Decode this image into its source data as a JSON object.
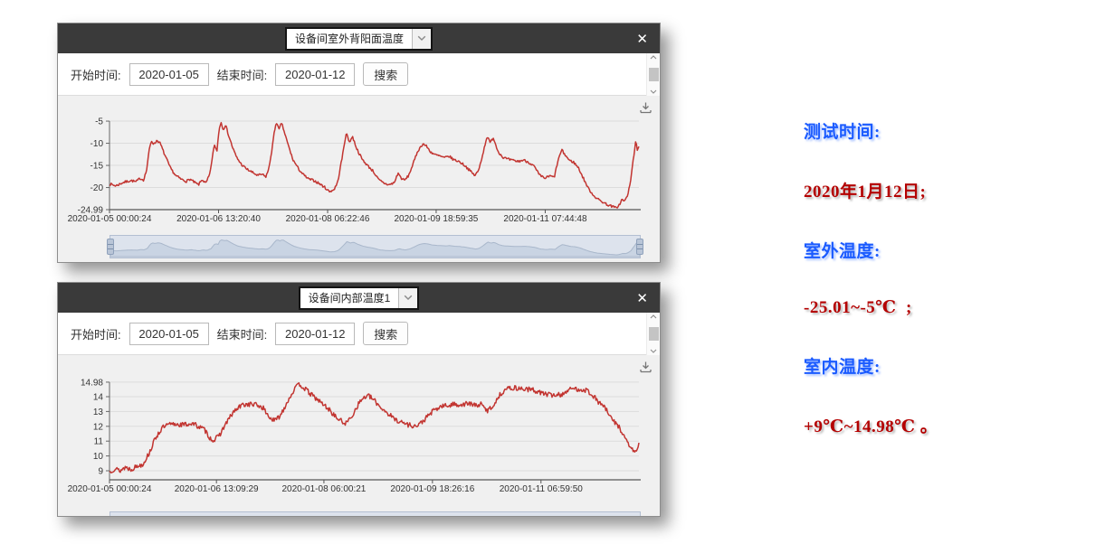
{
  "icons": {
    "close": "✕",
    "dropdown_chevron": "chevron-down",
    "scroll_up": "chevron-up",
    "scroll_down": "chevron-down",
    "download": "download-arrow-tray"
  },
  "colors": {
    "line_red": "#c23531",
    "titlebar": "#3a3a3a",
    "chart_bg": "#f0f0f0",
    "note_blue": "#1b5bff",
    "note_red": "#b40000",
    "brush_fill": "#c6d1e1"
  },
  "windows": [
    {
      "title": "设备间室外背阳面温度",
      "filter": {
        "start_label": "开始时间:",
        "start_value": "2020-01-05",
        "end_label": "结束时间:",
        "end_value": "2020-01-12",
        "search_label": "搜索"
      }
    },
    {
      "title": "设备间内部温度1",
      "filter": {
        "start_label": "开始时间:",
        "start_value": "2020-01-05",
        "end_label": "结束时间:",
        "end_value": "2020-01-12",
        "search_label": "搜索"
      }
    }
  ],
  "notes": [
    {
      "text": "测试时间:",
      "color": "blue"
    },
    {
      "text": "2020年1月12日;",
      "color": "red"
    },
    {
      "text": "室外温度:",
      "color": "blue"
    },
    {
      "text": "-25.01~-5℃  ;",
      "color": "red"
    },
    {
      "text": "室内温度:",
      "color": "blue"
    },
    {
      "text": "+9℃~14.98℃ 。",
      "color": "red"
    }
  ],
  "chart_data": [
    {
      "type": "line",
      "title": "设备间室外背阳面温度",
      "xlabel": "",
      "ylabel": "",
      "ylim": [
        -24.99,
        -5
      ],
      "grid": true,
      "legend": "none",
      "x_ticks": [
        "2020-01-05 00:00:24",
        "2020-01-06 13:20:40",
        "2020-01-08 06:22:46",
        "2020-01-09 18:59:35",
        "2020-01-11 07:44:48"
      ],
      "x_tick_pos": [
        0,
        0.206,
        0.412,
        0.617,
        0.823
      ],
      "y_ticks": [
        "-5",
        "-10",
        "-15",
        "-20",
        "-24.99"
      ],
      "series": [
        {
          "name": "设备间室外背阳面温度",
          "color": "#c23531",
          "noise": 0.28,
          "points": [
            [
              0.0,
              -19.2
            ],
            [
              0.012,
              -19.6
            ],
            [
              0.025,
              -18.9
            ],
            [
              0.04,
              -18.4
            ],
            [
              0.05,
              -18.7
            ],
            [
              0.058,
              -17.9
            ],
            [
              0.064,
              -18.3
            ],
            [
              0.07,
              -16.2
            ],
            [
              0.075,
              -11.5
            ],
            [
              0.079,
              -9.4
            ],
            [
              0.084,
              -10.2
            ],
            [
              0.09,
              -9.3
            ],
            [
              0.096,
              -10.1
            ],
            [
              0.105,
              -12.8
            ],
            [
              0.115,
              -15.6
            ],
            [
              0.125,
              -17.3
            ],
            [
              0.135,
              -18.1
            ],
            [
              0.145,
              -18.6
            ],
            [
              0.152,
              -18.1
            ],
            [
              0.16,
              -18.8
            ],
            [
              0.168,
              -19.4
            ],
            [
              0.175,
              -18.2
            ],
            [
              0.182,
              -19.1
            ],
            [
              0.19,
              -16.8
            ],
            [
              0.196,
              -11.6
            ],
            [
              0.199,
              -10.4
            ],
            [
              0.203,
              -11.9
            ],
            [
              0.207,
              -6.6
            ],
            [
              0.211,
              -5.3
            ],
            [
              0.215,
              -6.9
            ],
            [
              0.219,
              -5.8
            ],
            [
              0.225,
              -8.2
            ],
            [
              0.232,
              -10.8
            ],
            [
              0.24,
              -13.2
            ],
            [
              0.25,
              -14.9
            ],
            [
              0.26,
              -15.9
            ],
            [
              0.27,
              -16.6
            ],
            [
              0.28,
              -17.3
            ],
            [
              0.288,
              -17.0
            ],
            [
              0.295,
              -17.6
            ],
            [
              0.301,
              -15.8
            ],
            [
              0.306,
              -12.0
            ],
            [
              0.311,
              -7.8
            ],
            [
              0.315,
              -5.1
            ],
            [
              0.32,
              -7.0
            ],
            [
              0.325,
              -5.4
            ],
            [
              0.331,
              -7.8
            ],
            [
              0.337,
              -10.2
            ],
            [
              0.346,
              -13.6
            ],
            [
              0.356,
              -15.6
            ],
            [
              0.366,
              -17.1
            ],
            [
              0.376,
              -18.1
            ],
            [
              0.386,
              -18.4
            ],
            [
              0.396,
              -19.1
            ],
            [
              0.406,
              -19.9
            ],
            [
              0.415,
              -20.9
            ],
            [
              0.424,
              -20.5
            ],
            [
              0.431,
              -18.8
            ],
            [
              0.439,
              -13.5
            ],
            [
              0.447,
              -7.7
            ],
            [
              0.453,
              -9.7
            ],
            [
              0.459,
              -8.5
            ],
            [
              0.467,
              -11.2
            ],
            [
              0.477,
              -13.6
            ],
            [
              0.488,
              -15.1
            ],
            [
              0.498,
              -16.3
            ],
            [
              0.508,
              -18.2
            ],
            [
              0.518,
              -19.0
            ],
            [
              0.528,
              -19.4
            ],
            [
              0.538,
              -18.9
            ],
            [
              0.545,
              -16.7
            ],
            [
              0.551,
              -17.9
            ],
            [
              0.557,
              -18.4
            ],
            [
              0.565,
              -17.3
            ],
            [
              0.573,
              -14.8
            ],
            [
              0.582,
              -11.8
            ],
            [
              0.592,
              -10.1
            ],
            [
              0.599,
              -10.7
            ],
            [
              0.606,
              -11.9
            ],
            [
              0.615,
              -12.6
            ],
            [
              0.624,
              -12.9
            ],
            [
              0.633,
              -13.3
            ],
            [
              0.641,
              -12.9
            ],
            [
              0.65,
              -13.7
            ],
            [
              0.66,
              -14.1
            ],
            [
              0.67,
              -14.9
            ],
            [
              0.68,
              -16.1
            ],
            [
              0.69,
              -17.3
            ],
            [
              0.697,
              -16.2
            ],
            [
              0.705,
              -12.5
            ],
            [
              0.713,
              -8.4
            ],
            [
              0.719,
              -9.9
            ],
            [
              0.725,
              -8.7
            ],
            [
              0.733,
              -11.6
            ],
            [
              0.742,
              -13.1
            ],
            [
              0.752,
              -13.6
            ],
            [
              0.762,
              -13.9
            ],
            [
              0.772,
              -14.1
            ],
            [
              0.782,
              -13.8
            ],
            [
              0.792,
              -14.3
            ],
            [
              0.802,
              -15.2
            ],
            [
              0.812,
              -17.2
            ],
            [
              0.822,
              -17.9
            ],
            [
              0.832,
              -17.4
            ],
            [
              0.84,
              -17.7
            ],
            [
              0.847,
              -14.0
            ],
            [
              0.854,
              -11.5
            ],
            [
              0.861,
              -12.7
            ],
            [
              0.869,
              -13.9
            ],
            [
              0.877,
              -14.3
            ],
            [
              0.886,
              -15.6
            ],
            [
              0.895,
              -17.9
            ],
            [
              0.904,
              -20.1
            ],
            [
              0.913,
              -21.6
            ],
            [
              0.922,
              -22.6
            ],
            [
              0.932,
              -23.3
            ],
            [
              0.941,
              -23.9
            ],
            [
              0.95,
              -24.3
            ],
            [
              0.957,
              -24.6
            ],
            [
              0.963,
              -23.9
            ],
            [
              0.968,
              -22.7
            ],
            [
              0.973,
              -23.1
            ],
            [
              0.978,
              -21.9
            ],
            [
              0.983,
              -19.6
            ],
            [
              0.987,
              -15.8
            ],
            [
              0.991,
              -12.2
            ],
            [
              0.994,
              -9.3
            ],
            [
              0.997,
              -11.9
            ],
            [
              1.0,
              -10.9
            ]
          ]
        }
      ]
    },
    {
      "type": "line",
      "title": "设备间内部温度1",
      "xlabel": "",
      "ylabel": "",
      "ylim": [
        9,
        14.98
      ],
      "grid": true,
      "legend": "none",
      "x_ticks": [
        "2020-01-05 00:00:24",
        "2020-01-06 13:09:29",
        "2020-01-08 06:00:21",
        "2020-01-09 18:26:16",
        "2020-01-11 06:59:50"
      ],
      "x_tick_pos": [
        0,
        0.202,
        0.405,
        0.61,
        0.815
      ],
      "y_ticks": [
        "14.98",
        "14",
        "13",
        "12",
        "11",
        "10",
        "9"
      ],
      "series": [
        {
          "name": "设备间内部温度1",
          "color": "#c23531",
          "noise": 0.17,
          "points": [
            [
              0.0,
              8.95
            ],
            [
              0.01,
              9.15
            ],
            [
              0.02,
              9.0
            ],
            [
              0.03,
              9.25
            ],
            [
              0.04,
              9.1
            ],
            [
              0.052,
              9.3
            ],
            [
              0.063,
              9.45
            ],
            [
              0.075,
              10.2
            ],
            [
              0.088,
              11.3
            ],
            [
              0.1,
              11.9
            ],
            [
              0.111,
              12.1
            ],
            [
              0.125,
              12.15
            ],
            [
              0.14,
              12.1
            ],
            [
              0.155,
              12.2
            ],
            [
              0.168,
              12.0
            ],
            [
              0.18,
              11.75
            ],
            [
              0.19,
              11.2
            ],
            [
              0.196,
              11.05
            ],
            [
              0.206,
              11.3
            ],
            [
              0.22,
              12.2
            ],
            [
              0.235,
              13.0
            ],
            [
              0.251,
              13.45
            ],
            [
              0.265,
              13.5
            ],
            [
              0.278,
              13.45
            ],
            [
              0.29,
              13.25
            ],
            [
              0.3,
              12.7
            ],
            [
              0.311,
              12.35
            ],
            [
              0.322,
              12.7
            ],
            [
              0.335,
              13.6
            ],
            [
              0.349,
              14.5
            ],
            [
              0.359,
              14.85
            ],
            [
              0.37,
              14.5
            ],
            [
              0.384,
              14.05
            ],
            [
              0.398,
              13.65
            ],
            [
              0.413,
              13.2
            ],
            [
              0.428,
              12.6
            ],
            [
              0.44,
              12.3
            ],
            [
              0.447,
              12.2
            ],
            [
              0.458,
              12.7
            ],
            [
              0.47,
              13.5
            ],
            [
              0.48,
              13.95
            ],
            [
              0.49,
              14.05
            ],
            [
              0.5,
              13.75
            ],
            [
              0.512,
              13.3
            ],
            [
              0.525,
              12.9
            ],
            [
              0.538,
              12.5
            ],
            [
              0.55,
              12.3
            ],
            [
              0.565,
              12.1
            ],
            [
              0.581,
              12.0
            ],
            [
              0.595,
              12.45
            ],
            [
              0.61,
              13.0
            ],
            [
              0.627,
              13.35
            ],
            [
              0.64,
              13.4
            ],
            [
              0.653,
              13.5
            ],
            [
              0.665,
              13.45
            ],
            [
              0.678,
              13.55
            ],
            [
              0.69,
              13.4
            ],
            [
              0.701,
              13.5
            ],
            [
              0.713,
              13.05
            ],
            [
              0.725,
              13.4
            ],
            [
              0.737,
              14.1
            ],
            [
              0.747,
              14.5
            ],
            [
              0.762,
              14.6
            ],
            [
              0.775,
              14.55
            ],
            [
              0.788,
              14.5
            ],
            [
              0.8,
              14.45
            ],
            [
              0.812,
              14.3
            ],
            [
              0.822,
              14.2
            ],
            [
              0.835,
              14.1
            ],
            [
              0.845,
              14.15
            ],
            [
              0.852,
              14.1
            ],
            [
              0.862,
              14.35
            ],
            [
              0.875,
              14.55
            ],
            [
              0.888,
              14.5
            ],
            [
              0.9,
              14.45
            ],
            [
              0.91,
              14.2
            ],
            [
              0.922,
              13.7
            ],
            [
              0.935,
              13.3
            ],
            [
              0.948,
              12.5
            ],
            [
              0.962,
              12.0
            ],
            [
              0.972,
              11.3
            ],
            [
              0.982,
              10.7
            ],
            [
              0.99,
              10.3
            ],
            [
              0.995,
              10.25
            ],
            [
              1.0,
              10.9
            ]
          ]
        }
      ]
    }
  ]
}
